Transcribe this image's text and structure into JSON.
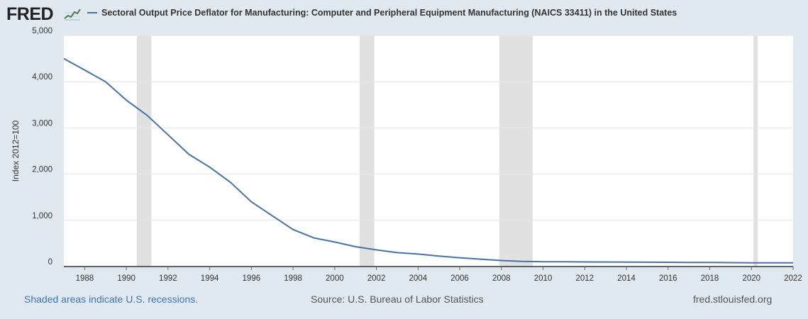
{
  "header": {
    "logo_text": "FRED",
    "logo_icon": "line-chart-icon",
    "title": "Sectoral Output Price Deflator for Manufacturing: Computer and Peripheral Equipment Manufacturing (NAICS 33411) in the United States"
  },
  "footer": {
    "recession_note": "Shaded areas indicate U.S. recessions.",
    "source": "Source: U.S. Bureau of Labor Statistics",
    "site": "fred.stlouisfed.org"
  },
  "colors": {
    "background": "#e1e9f0",
    "plot_background": "#ffffff",
    "series": "#4572a7",
    "recession": "#e1e1e1",
    "link": "#3e74b8"
  },
  "chart_data": {
    "type": "line",
    "title": "Sectoral Output Price Deflator for Manufacturing: Computer and Peripheral Equipment Manufacturing (NAICS 33411) in the United States",
    "xlabel": "",
    "ylabel": "Index 2012=100",
    "xlim": [
      1987,
      2022
    ],
    "ylim": [
      0,
      5000
    ],
    "x_ticks": [
      1988,
      1990,
      1992,
      1994,
      1996,
      1998,
      2000,
      2002,
      2004,
      2006,
      2008,
      2010,
      2012,
      2014,
      2016,
      2018,
      2020,
      2022
    ],
    "y_ticks": [
      0,
      1000,
      2000,
      3000,
      4000,
      5000
    ],
    "y_tick_labels": [
      "0",
      "1,000",
      "2,000",
      "3,000",
      "4,000",
      "5,000"
    ],
    "grid": "horizontal",
    "legend": "top",
    "recessions": [
      [
        1990.5,
        1991.2
      ],
      [
        2001.2,
        2001.9
      ],
      [
        2007.9,
        2009.5
      ],
      [
        2020.1,
        2020.3
      ]
    ],
    "series": [
      {
        "name": "Sectoral Output Price Deflator for Manufacturing: Computer and Peripheral Equipment Manufacturing (NAICS 33411) in the United States",
        "x": [
          1987,
          1988,
          1989,
          1990,
          1991,
          1992,
          1993,
          1994,
          1995,
          1996,
          1997,
          1998,
          1999,
          2000,
          2001,
          2002,
          2003,
          2004,
          2005,
          2006,
          2007,
          2008,
          2009,
          2010,
          2011,
          2012,
          2013,
          2014,
          2015,
          2016,
          2017,
          2018,
          2019,
          2020,
          2021,
          2022
        ],
        "values": [
          4500,
          4250,
          4000,
          3600,
          3270,
          2850,
          2430,
          2150,
          1820,
          1400,
          1100,
          800,
          620,
          530,
          430,
          360,
          300,
          270,
          225,
          190,
          160,
          130,
          110,
          105,
          102,
          100,
          98,
          96,
          94,
          92,
          89,
          87,
          84,
          82,
          80,
          80
        ]
      }
    ]
  }
}
